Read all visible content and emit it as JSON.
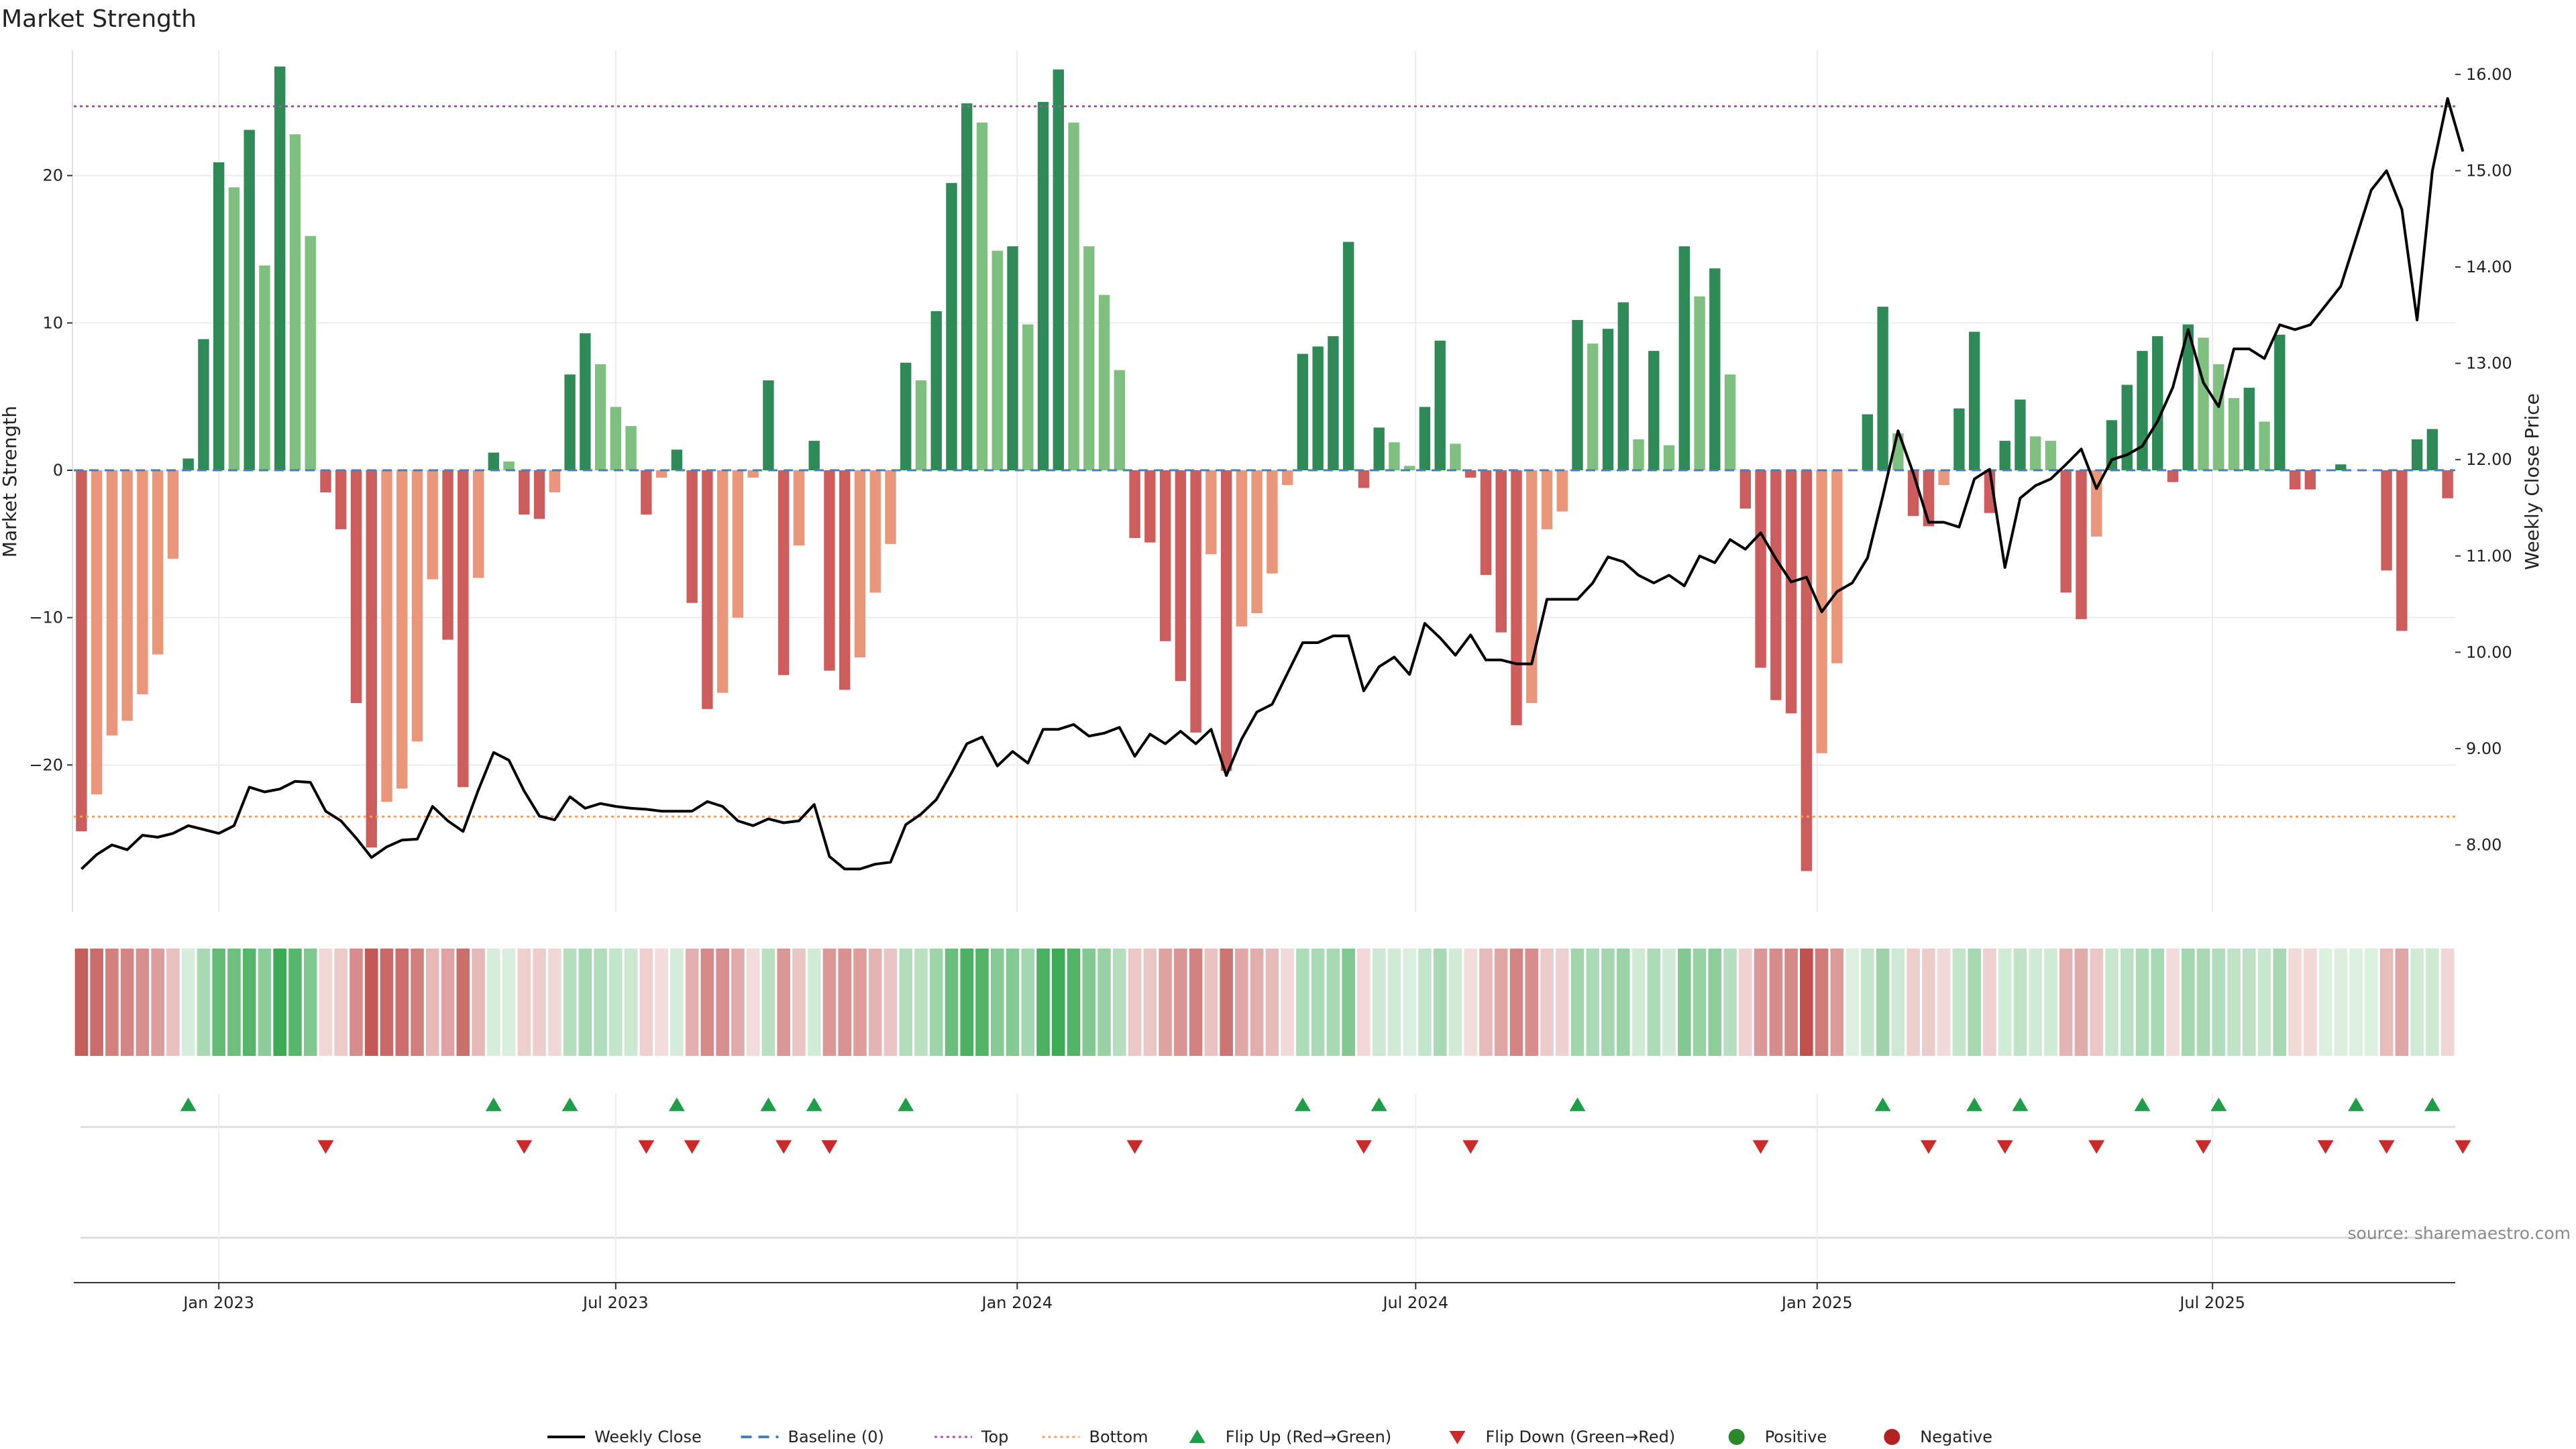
{
  "chart_data": {
    "type": "bar",
    "title": "Market Strength",
    "ylabel_left": "Market Strength",
    "ylabel_right": "Weekly Close Price",
    "source": "source: sharemaestro.com",
    "ylim_left": [
      -30,
      28.5
    ],
    "ylim_right": [
      7.3,
      16.25
    ],
    "left_ticks": [
      20,
      10,
      0,
      -10,
      -20
    ],
    "left_tick_labels": [
      "20",
      "10",
      "0",
      "−10",
      "−20"
    ],
    "right_ticks": [
      8,
      9,
      10,
      11,
      12,
      13,
      14,
      15,
      16
    ],
    "right_tick_labels": [
      "8.00",
      "9.00",
      "10.00",
      "11.00",
      "12.00",
      "13.00",
      "14.00",
      "15.00",
      "16.00"
    ],
    "top_level": 24.7,
    "bottom_level": -23.5,
    "grid": true,
    "x_ticks": [
      {
        "label": "Jan 2023",
        "index": 9.0
      },
      {
        "label": "Jul 2023",
        "index": 35.0
      },
      {
        "label": "Jan 2024",
        "index": 61.3
      },
      {
        "label": "Jul 2024",
        "index": 87.4
      },
      {
        "label": "Jan 2025",
        "index": 113.7
      },
      {
        "label": "Jul 2025",
        "index": 139.6
      }
    ],
    "strength": [
      -24.5,
      -22,
      -18,
      -17,
      -15.2,
      -12.5,
      -6,
      0.8,
      8.9,
      20.9,
      19.2,
      23.1,
      13.9,
      27.4,
      22.8,
      15.9,
      -1.5,
      -4,
      -15.8,
      -25.6,
      -22.5,
      -21.6,
      -18.4,
      -7.4,
      -11.5,
      -21.5,
      -7.3,
      1.2,
      0.6,
      -3,
      -3.3,
      -1.5,
      6.5,
      9.3,
      7.2,
      4.3,
      3,
      -3,
      -0.5,
      1.4,
      -9,
      -16.2,
      -15.1,
      -10,
      -0.5,
      6.1,
      -13.9,
      -5.1,
      2,
      -13.6,
      -14.9,
      -12.7,
      -8.3,
      -5,
      7.3,
      6.1,
      10.8,
      19.5,
      24.9,
      23.6,
      14.9,
      15.2,
      9.9,
      25,
      27.2,
      23.6,
      15.2,
      11.9,
      6.8,
      -4.6,
      -4.9,
      -11.6,
      -14.3,
      -17.8,
      -5.7,
      -20.4,
      -10.6,
      -9.7,
      -7,
      -1,
      7.9,
      8.4,
      9.1,
      15.5,
      -1.2,
      2.9,
      1.9,
      0.3,
      4.3,
      8.8,
      1.8,
      -0.5,
      -7.1,
      -11,
      -17.3,
      -15.8,
      -4,
      -2.8,
      10.2,
      8.6,
      9.6,
      11.4,
      2.1,
      8.1,
      1.7,
      15.2,
      11.8,
      13.7,
      6.5,
      -2.6,
      -13.4,
      -15.6,
      -16.5,
      -27.2,
      -19.2,
      -13.1,
      0,
      3.8,
      11.1,
      2.5,
      -3.1,
      -3.8,
      -1,
      4.2,
      9.4,
      -2.9,
      2,
      4.8,
      2.3,
      2,
      -8.3,
      -10.1,
      -4.5,
      3.4,
      5.8,
      8.1,
      9.1,
      -0.8,
      9.9,
      9,
      7.2,
      4.9,
      5.6,
      3.3,
      9.2,
      -1.3,
      -1.3,
      0,
      0.4,
      0,
      0,
      -6.8,
      -10.9,
      2.1,
      2.8,
      -1.9
    ],
    "weekly_close": [
      7.75,
      7.9,
      8.0,
      7.95,
      8.1,
      8.08,
      8.12,
      8.2,
      8.16,
      8.12,
      8.2,
      8.6,
      8.55,
      8.58,
      8.66,
      8.65,
      8.35,
      8.25,
      8.07,
      7.87,
      7.98,
      8.05,
      8.06,
      8.4,
      8.25,
      8.14,
      8.57,
      8.96,
      8.88,
      8.56,
      8.3,
      8.26,
      8.5,
      8.38,
      8.43,
      8.4,
      8.38,
      8.37,
      8.35,
      8.35,
      8.35,
      8.45,
      8.4,
      8.25,
      8.2,
      8.27,
      8.23,
      8.25,
      8.42,
      7.88,
      7.75,
      7.75,
      7.8,
      7.82,
      8.21,
      8.32,
      8.47,
      8.75,
      9.05,
      9.12,
      8.82,
      8.97,
      8.85,
      9.2,
      9.2,
      9.25,
      9.13,
      9.16,
      9.22,
      8.92,
      9.15,
      9.05,
      9.18,
      9.05,
      9.2,
      8.72,
      9.1,
      9.38,
      9.46,
      9.78,
      10.1,
      10.1,
      10.17,
      10.17,
      9.6,
      9.85,
      9.95,
      9.77,
      10.3,
      10.15,
      9.97,
      10.18,
      9.92,
      9.92,
      9.88,
      9.88,
      10.55,
      10.55,
      10.55,
      10.72,
      10.99,
      10.94,
      10.8,
      10.72,
      10.8,
      10.69,
      11.0,
      10.93,
      11.17,
      11.07,
      11.24,
      10.97,
      10.73,
      10.78,
      10.42,
      10.63,
      10.72,
      10.98,
      11.62,
      12.3,
      11.86,
      11.35,
      11.35,
      11.3,
      11.8,
      11.9,
      10.88,
      11.6,
      11.73,
      11.8,
      11.95,
      12.11,
      11.7,
      12.0,
      12.05,
      12.14,
      12.4,
      12.75,
      13.35,
      12.8,
      12.55,
      13.15,
      13.15,
      13.05,
      13.4,
      13.35,
      13.4,
      13.6,
      13.8,
      14.3,
      14.8,
      15.0,
      14.6,
      13.45,
      15.0,
      15.75,
      15.2
    ],
    "flip_up_indices": [
      7,
      27,
      32,
      39,
      45,
      48,
      54,
      80,
      85,
      98,
      118,
      124,
      127,
      135,
      140,
      149,
      154
    ],
    "flip_down_indices": [
      16,
      29,
      37,
      40,
      46,
      49,
      69,
      84,
      91,
      110,
      121,
      126,
      132,
      139,
      147,
      151,
      156
    ],
    "colors": {
      "strong_green": "#2e8b57",
      "light_green": "#7fbf7f",
      "strong_red": "#cd5c5c",
      "light_red": "#e9967a",
      "price_line": "#000000",
      "baseline": "#4a7fb5",
      "top_line": "#a154b5",
      "bottom_line": "#f0a060",
      "flip_up": "#1f9e4a",
      "flip_down": "#cc2a2a",
      "positive": "#2a8a2a",
      "negative": "#b22222"
    },
    "legend": [
      {
        "label": "Weekly Close",
        "symbol": "line-solid",
        "color": "#000000"
      },
      {
        "label": "Baseline (0)",
        "symbol": "line-dash",
        "color": "#4a7fb5"
      },
      {
        "label": "Top",
        "symbol": "line-dot",
        "color": "#a154b5"
      },
      {
        "label": "Bottom",
        "symbol": "line-dot",
        "color": "#f0a060"
      },
      {
        "label": "Flip Up (Red→Green)",
        "symbol": "triangle-up",
        "color": "#1f9e4a"
      },
      {
        "label": "Flip Down (Green→Red)",
        "symbol": "triangle-down",
        "color": "#cc2a2a"
      },
      {
        "label": "Positive",
        "symbol": "circle",
        "color": "#2a8a2a"
      },
      {
        "label": "Negative",
        "symbol": "circle",
        "color": "#b22222"
      }
    ],
    "legend_position": "bottom-center"
  }
}
